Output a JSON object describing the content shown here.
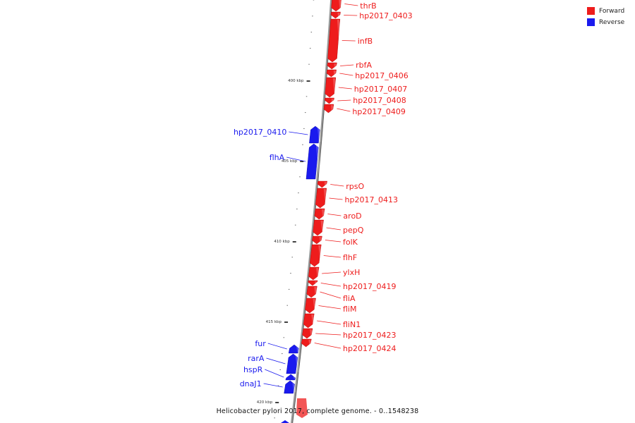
{
  "legend": {
    "forward": {
      "label": "Forward",
      "color": "#ee1c1c"
    },
    "reverse": {
      "label": "Reverse",
      "color": "#1a1aee"
    }
  },
  "caption": "Helicobacter pylori 2017, complete genome. - 0..1548238",
  "ticks": [
    {
      "label": "400 kbp"
    },
    {
      "label": "405 kbp"
    },
    {
      "label": "410 kbp"
    },
    {
      "label": "415 kbp"
    },
    {
      "label": "420 kbp"
    }
  ],
  "genes": [
    {
      "name": "thrB",
      "strand": "forward"
    },
    {
      "name": "hp2017_0403",
      "strand": "forward"
    },
    {
      "name": "infB",
      "strand": "forward"
    },
    {
      "name": "rbfA",
      "strand": "forward"
    },
    {
      "name": "hp2017_0406",
      "strand": "forward"
    },
    {
      "name": "hp2017_0407",
      "strand": "forward"
    },
    {
      "name": "hp2017_0408",
      "strand": "forward"
    },
    {
      "name": "hp2017_0409",
      "strand": "forward"
    },
    {
      "name": "hp2017_0410",
      "strand": "reverse"
    },
    {
      "name": "flhA",
      "strand": "reverse"
    },
    {
      "name": "rpsO",
      "strand": "forward"
    },
    {
      "name": "hp2017_0413",
      "strand": "forward"
    },
    {
      "name": "aroD",
      "strand": "forward"
    },
    {
      "name": "pepQ",
      "strand": "forward"
    },
    {
      "name": "folK",
      "strand": "forward"
    },
    {
      "name": "flhF",
      "strand": "forward"
    },
    {
      "name": "ylxH",
      "strand": "forward"
    },
    {
      "name": "hp2017_0419",
      "strand": "forward"
    },
    {
      "name": "fliA",
      "strand": "forward"
    },
    {
      "name": "fliM",
      "strand": "forward"
    },
    {
      "name": "fliN1",
      "strand": "forward"
    },
    {
      "name": "hp2017_0423",
      "strand": "forward"
    },
    {
      "name": "hp2017_0424",
      "strand": "forward"
    },
    {
      "name": "fur",
      "strand": "reverse"
    },
    {
      "name": "rarA",
      "strand": "reverse"
    },
    {
      "name": "hspR",
      "strand": "reverse"
    },
    {
      "name": "dnaJ1",
      "strand": "reverse"
    }
  ]
}
